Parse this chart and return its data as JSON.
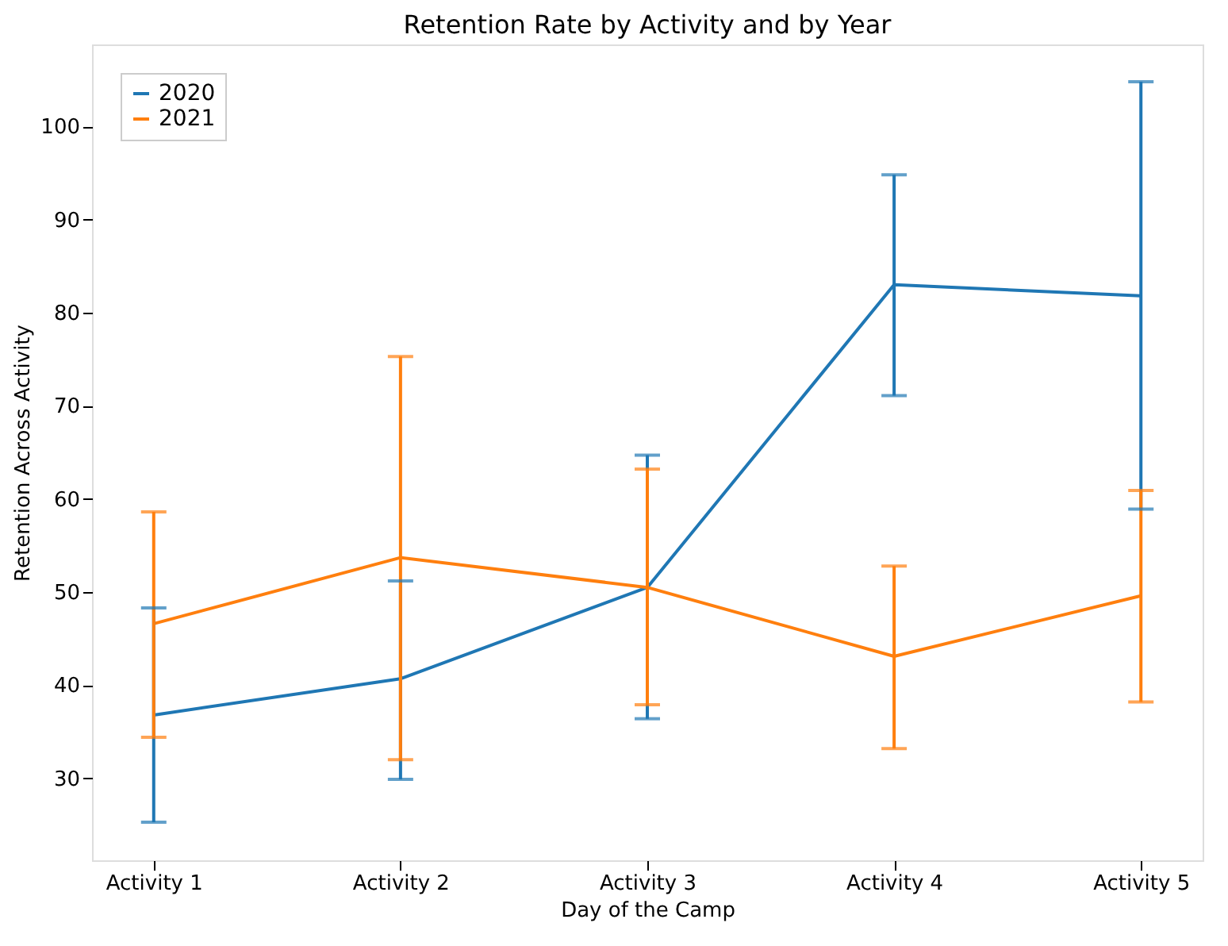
{
  "chart_data": {
    "type": "line",
    "title": "Retention Rate by Activity and by Year",
    "xlabel": "Day of the Camp",
    "ylabel": "Retention Across Activity",
    "categories": [
      "Activity 1",
      "Activity 2",
      "Activity 3",
      "Activity 4",
      "Activity 5"
    ],
    "series": [
      {
        "name": "2020",
        "color": "#1f77b4",
        "values": [
          36.8,
          40.7,
          50.5,
          83.0,
          81.8
        ],
        "errors": [
          [
            25.3,
            48.3
          ],
          [
            29.9,
            51.2
          ],
          [
            36.4,
            64.7
          ],
          [
            71.1,
            94.8
          ],
          [
            58.9,
            104.8
          ]
        ]
      },
      {
        "name": "2021",
        "color": "#ff7f0e",
        "values": [
          46.6,
          53.7,
          50.5,
          43.1,
          49.6
        ],
        "errors": [
          [
            34.4,
            58.6
          ],
          [
            32.0,
            75.3
          ],
          [
            37.9,
            63.2
          ],
          [
            33.2,
            52.8
          ],
          [
            38.2,
            60.9
          ]
        ]
      }
    ],
    "ylim": [
      21.2,
      108.8
    ],
    "yticks": [
      30,
      40,
      50,
      60,
      70,
      80,
      90,
      100
    ],
    "grid": false,
    "legend": "top left",
    "marker": "none",
    "line_style": "solid"
  }
}
